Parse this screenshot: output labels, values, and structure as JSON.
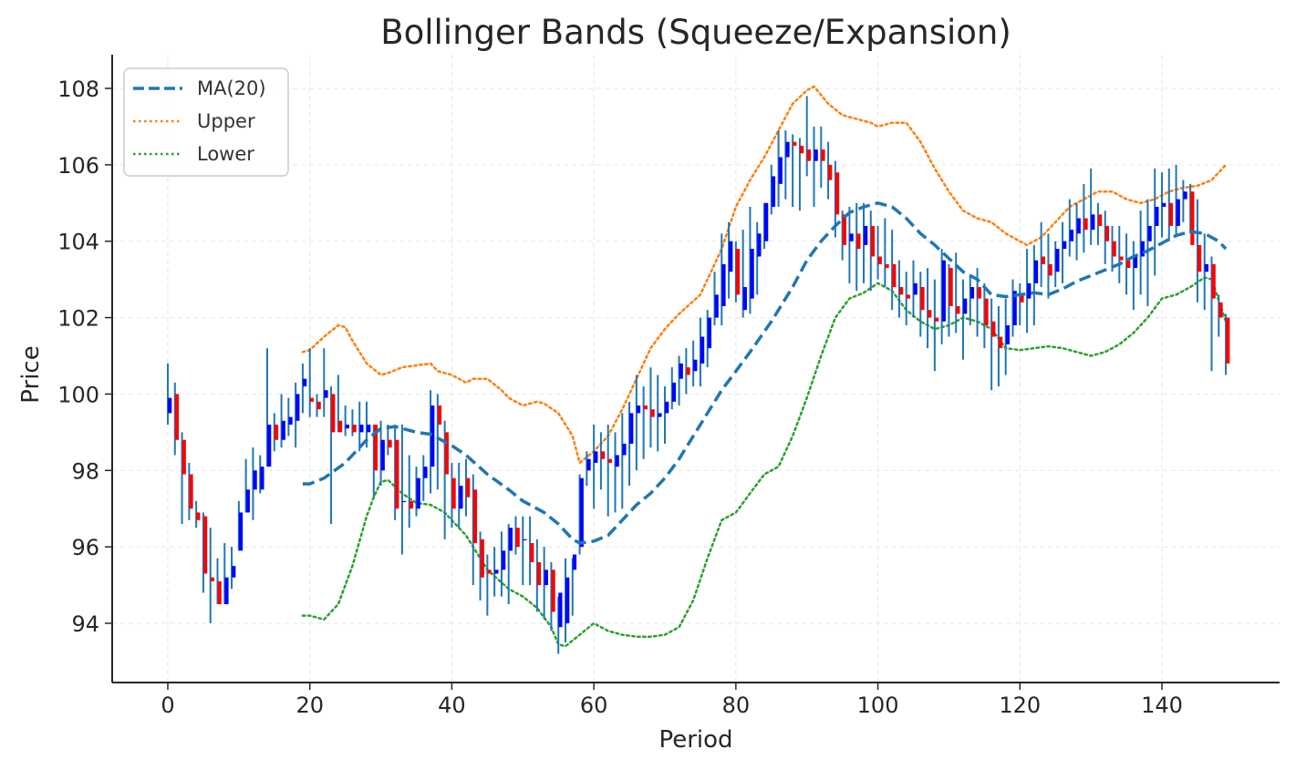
{
  "chart_data": {
    "type": "candlestick_with_bollinger_bands",
    "title": "Bollinger Bands (Squeeze/Expansion)",
    "xlabel": "Period",
    "ylabel": "Price",
    "xlim": [
      -8,
      157
    ],
    "ylim": [
      92.5,
      108.8
    ],
    "xticks": [
      0,
      20,
      40,
      60,
      80,
      100,
      120,
      140
    ],
    "yticks": [
      94,
      96,
      98,
      100,
      102,
      104,
      106,
      108
    ],
    "grid": true,
    "legend_position": "top-left",
    "colors": {
      "ma": "#1f77b4",
      "upper": "#ff7f0e",
      "lower": "#2ca02c",
      "wick": "#1f77b4",
      "up_body": "#0000ff",
      "down_body": "#ff0000",
      "grid": "#e6e6e6",
      "axis": "#262626"
    },
    "legend": [
      {
        "label": "MA(20)",
        "style": "dashed",
        "color": "#1f77b4"
      },
      {
        "label": "Upper",
        "style": "dotted",
        "color": "#ff7f0e"
      },
      {
        "label": "Lower",
        "style": "dotted",
        "color": "#2ca02c"
      }
    ],
    "ohlc_key": {
      "0": [
        99.5,
        100.8,
        99.2,
        99.9
      ],
      "1": [
        100.0,
        100.3,
        98.4,
        98.8
      ],
      "2": [
        98.8,
        99.0,
        96.6,
        97.9
      ],
      "3": [
        97.9,
        98.2,
        96.7,
        97.0
      ],
      "4": [
        96.9,
        97.2,
        96.5,
        96.7
      ],
      "5": [
        96.8,
        96.9,
        94.8,
        95.3
      ],
      "6": [
        95.2,
        96.5,
        94.0,
        95.1
      ],
      "7": [
        95.1,
        95.7,
        94.5,
        94.5
      ],
      "8": [
        94.5,
        96.1,
        94.5,
        95.2
      ],
      "9": [
        95.2,
        96.0,
        94.9,
        95.5
      ],
      "10": [
        95.9,
        97.2,
        95.9,
        96.9
      ],
      "11": [
        96.9,
        98.3,
        96.9,
        97.5
      ],
      "12": [
        97.5,
        98.6,
        96.7,
        98.0
      ],
      "13": [
        97.5,
        98.4,
        97.4,
        98.1
      ],
      "14": [
        98.1,
        101.2,
        98.1,
        99.2
      ],
      "15": [
        99.2,
        99.5,
        98.5,
        98.8
      ],
      "16": [
        98.8,
        100.0,
        98.6,
        99.3
      ],
      "17": [
        99.2,
        99.9,
        98.9,
        99.4
      ],
      "18": [
        99.3,
        100.3,
        98.6,
        100.0
      ],
      "19": [
        100.2,
        100.8,
        99.5,
        100.4
      ],
      "20": [
        99.9,
        101.2,
        99.4,
        99.8
      ],
      "21": [
        99.8,
        100.0,
        99.4,
        99.6
      ],
      "22": [
        99.9,
        101.2,
        99.4,
        100.1
      ],
      "23": [
        100.0,
        100.2,
        96.6,
        99.0
      ],
      "24": [
        99.3,
        100.5,
        99.0,
        99.0
      ],
      "25": [
        99.1,
        99.7,
        98.9,
        99.2
      ],
      "26": [
        99.2,
        99.6,
        98.9,
        99.0
      ],
      "27": [
        99.0,
        99.8,
        98.5,
        99.2
      ],
      "28": [
        99.0,
        99.8,
        98.6,
        99.2
      ],
      "29": [
        99.2,
        99.2,
        97.3,
        98.0
      ],
      "30": [
        98.0,
        99.3,
        97.6,
        98.8
      ],
      "31": [
        98.8,
        99.2,
        98.4,
        98.6
      ],
      "32": [
        98.8,
        99.2,
        96.7,
        97.0
      ],
      "33": [
        97.2,
        99.2,
        95.8,
        97.2
      ],
      "34": [
        97.2,
        98.4,
        96.5,
        97.0
      ],
      "35": [
        97.0,
        98.1,
        96.8,
        97.8
      ],
      "36": [
        97.8,
        98.4,
        97.2,
        98.1
      ],
      "37": [
        98.1,
        100.1,
        97.4,
        99.7
      ],
      "38": [
        99.7,
        100.0,
        97.5,
        99.2
      ],
      "39": [
        99.0,
        99.3,
        96.2,
        97.9
      ],
      "40": [
        97.8,
        98.2,
        96.5,
        97.0
      ],
      "41": [
        97.0,
        98.2,
        96.5,
        97.6
      ],
      "42": [
        97.8,
        98.3,
        96.8,
        97.3
      ],
      "43": [
        97.5,
        97.9,
        95.0,
        96.1
      ],
      "44": [
        96.2,
        96.4,
        94.6,
        95.2
      ],
      "45": [
        95.4,
        95.8,
        94.2,
        95.3
      ],
      "46": [
        95.3,
        96.0,
        94.7,
        95.4
      ],
      "47": [
        95.4,
        96.4,
        94.7,
        95.9
      ],
      "48": [
        95.9,
        96.6,
        94.5,
        96.5
      ],
      "49": [
        96.5,
        96.8,
        95.8,
        96.0
      ],
      "50": [
        96.2,
        96.8,
        95.0,
        96.2
      ],
      "51": [
        96.1,
        96.8,
        95.0,
        95.6
      ],
      "52": [
        95.6,
        96.2,
        94.3,
        95.0
      ],
      "53": [
        95.0,
        96.0,
        94.1,
        95.4
      ],
      "54": [
        95.4,
        95.6,
        93.8,
        94.3
      ],
      "55": [
        93.9,
        94.7,
        93.2,
        94.8
      ],
      "56": [
        94.0,
        95.7,
        93.5,
        95.2
      ],
      "57": [
        95.4,
        95.7,
        94.2,
        95.8
      ],
      "58": [
        96.0,
        97.9,
        95.8,
        97.8
      ],
      "59": [
        98.0,
        98.5,
        97.6,
        98.3
      ],
      "60": [
        98.2,
        99.2,
        97.0,
        98.5
      ],
      "61": [
        98.5,
        99.0,
        97.5,
        98.3
      ],
      "62": [
        98.3,
        99.2,
        96.8,
        98.2
      ],
      "63": [
        98.1,
        99.0,
        96.9,
        98.4
      ],
      "64": [
        98.4,
        99.5,
        97.0,
        98.7
      ],
      "65": [
        98.7,
        99.8,
        97.6,
        99.5
      ],
      "66": [
        99.5,
        100.5,
        98.0,
        99.7
      ],
      "67": [
        99.7,
        100.2,
        98.3,
        99.6
      ],
      "68": [
        99.6,
        100.7,
        98.6,
        99.4
      ],
      "69": [
        99.4,
        100.5,
        98.5,
        99.5
      ],
      "70": [
        99.5,
        100.2,
        98.7,
        99.8
      ],
      "71": [
        99.8,
        100.7,
        99.6,
        100.3
      ],
      "72": [
        100.4,
        101.0,
        99.7,
        100.8
      ],
      "73": [
        100.7,
        101.2,
        100.0,
        100.5
      ],
      "74": [
        100.6,
        101.4,
        100.2,
        100.9
      ],
      "75": [
        100.8,
        102.0,
        100.2,
        101.5
      ],
      "76": [
        101.2,
        102.2,
        100.7,
        102.0
      ],
      "77": [
        102.0,
        103.2,
        101.8,
        102.6
      ],
      "78": [
        102.3,
        104.2,
        101.8,
        103.4
      ],
      "79": [
        103.2,
        104.5,
        102.5,
        104.0
      ],
      "80": [
        103.8,
        104.0,
        102.4,
        102.6
      ],
      "81": [
        102.2,
        104.3,
        102.0,
        102.8
      ],
      "82": [
        102.5,
        104.9,
        102.1,
        103.8
      ],
      "83": [
        103.6,
        104.5,
        102.6,
        104.2
      ],
      "84": [
        104.0,
        105.0,
        103.8,
        105.0
      ],
      "85": [
        104.9,
        106.0,
        104.7,
        105.7
      ],
      "86": [
        105.5,
        106.9,
        104.9,
        106.2
      ],
      "87": [
        106.2,
        106.9,
        105.1,
        106.6
      ],
      "88": [
        106.6,
        106.8,
        104.9,
        106.5
      ],
      "89": [
        106.5,
        106.7,
        104.8,
        106.3
      ],
      "90": [
        106.4,
        107.8,
        105.7,
        106.1
      ],
      "91": [
        106.1,
        107.0,
        104.9,
        106.4
      ],
      "92": [
        106.4,
        107.0,
        105.4,
        106.1
      ],
      "93": [
        106.0,
        106.6,
        105.1,
        105.6
      ],
      "94": [
        105.8,
        106.1,
        104.1,
        104.7
      ],
      "95": [
        104.7,
        104.8,
        103.5,
        103.9
      ],
      "96": [
        104.0,
        104.9,
        102.9,
        104.2
      ],
      "97": [
        104.2,
        105.0,
        102.7,
        103.8
      ],
      "98": [
        103.9,
        105.0,
        102.9,
        104.4
      ],
      "99": [
        104.4,
        104.8,
        102.7,
        103.6
      ],
      "100": [
        103.6,
        104.4,
        103.0,
        103.4
      ],
      "101": [
        103.4,
        104.6,
        102.8,
        103.3
      ],
      "102": [
        103.4,
        104.3,
        102.2,
        102.8
      ],
      "103": [
        102.8,
        103.5,
        102.0,
        102.6
      ],
      "104": [
        102.6,
        103.2,
        101.8,
        102.5
      ],
      "105": [
        102.6,
        103.5,
        102.0,
        102.9
      ],
      "106": [
        102.8,
        103.2,
        101.5,
        102.2
      ],
      "107": [
        102.2,
        103.3,
        101.2,
        102.0
      ],
      "108": [
        102.0,
        103.0,
        100.6,
        101.9
      ],
      "109": [
        101.9,
        103.8,
        101.3,
        103.5
      ],
      "110": [
        103.3,
        103.4,
        101.5,
        102.3
      ],
      "111": [
        102.3,
        103.7,
        101.6,
        102.1
      ],
      "112": [
        102.1,
        103.0,
        100.9,
        102.5
      ],
      "113": [
        102.5,
        103.1,
        101.8,
        102.8
      ],
      "114": [
        102.8,
        103.3,
        101.5,
        102.5
      ],
      "115": [
        102.5,
        102.9,
        101.2,
        101.8
      ],
      "116": [
        101.9,
        102.5,
        100.1,
        101.5
      ],
      "117": [
        101.5,
        102.3,
        100.2,
        101.2
      ],
      "118": [
        101.3,
        102.5,
        100.5,
        101.8
      ],
      "119": [
        101.8,
        103.0,
        101.5,
        102.7
      ],
      "120": [
        102.6,
        102.9,
        101.8,
        102.4
      ],
      "121": [
        102.5,
        103.8,
        101.6,
        102.9
      ],
      "122": [
        102.9,
        103.9,
        101.8,
        103.5
      ],
      "123": [
        103.6,
        104.5,
        102.8,
        103.4
      ],
      "124": [
        103.4,
        104.2,
        102.5,
        103.1
      ],
      "125": [
        103.2,
        104.0,
        102.8,
        103.8
      ],
      "126": [
        103.8,
        104.5,
        102.9,
        104.0
      ],
      "127": [
        104.0,
        105.1,
        103.6,
        104.3
      ],
      "128": [
        104.2,
        105.0,
        103.5,
        104.6
      ],
      "129": [
        104.6,
        105.5,
        103.7,
        104.3
      ],
      "130": [
        104.3,
        105.9,
        103.9,
        104.7
      ],
      "131": [
        104.7,
        105.0,
        103.9,
        104.4
      ],
      "132": [
        104.4,
        104.8,
        103.4,
        104.0
      ],
      "133": [
        104.0,
        104.4,
        103.2,
        103.6
      ],
      "134": [
        103.6,
        104.4,
        102.9,
        103.5
      ],
      "135": [
        103.5,
        104.2,
        102.6,
        103.3
      ],
      "136": [
        103.3,
        104.0,
        102.2,
        103.6
      ],
      "137": [
        103.6,
        104.8,
        102.6,
        104.0
      ],
      "138": [
        104.0,
        105.1,
        102.3,
        104.4
      ],
      "139": [
        104.4,
        105.9,
        103.1,
        104.9
      ],
      "140": [
        104.9,
        105.8,
        104.1,
        105.0
      ],
      "141": [
        105.0,
        105.9,
        104.0,
        104.4
      ],
      "142": [
        104.4,
        106.0,
        104.1,
        105.1
      ],
      "143": [
        105.1,
        105.6,
        104.5,
        105.3
      ],
      "144": [
        105.3,
        105.5,
        104.2,
        103.9
      ],
      "145": [
        103.9,
        105.1,
        102.4,
        103.2
      ],
      "146": [
        103.2,
        104.2,
        102.2,
        103.4
      ],
      "147": [
        103.4,
        103.6,
        100.6,
        102.5
      ],
      "148": [
        102.4,
        102.6,
        101.5,
        102.0
      ],
      "149": [
        102.0,
        102.1,
        100.5,
        100.8
      ]
    },
    "ma_x": [
      19,
      20,
      22,
      25,
      28,
      30,
      32,
      35,
      37,
      40,
      42,
      45,
      48,
      50,
      53,
      55,
      57,
      58,
      60,
      62,
      64,
      66,
      68,
      70,
      72,
      75,
      78,
      80,
      82,
      85,
      88,
      90,
      92,
      94,
      96,
      98,
      100,
      102,
      104,
      106,
      108,
      110,
      112,
      114,
      116,
      118,
      120,
      122,
      124,
      126,
      128,
      130,
      132,
      134,
      136,
      138,
      140,
      142,
      144,
      146,
      148,
      149
    ],
    "ma_values": [
      97.65,
      97.65,
      97.8,
      98.2,
      98.8,
      99.1,
      99.15,
      99.0,
      98.95,
      98.65,
      98.4,
      97.9,
      97.5,
      97.2,
      96.9,
      96.6,
      96.2,
      96.1,
      96.15,
      96.3,
      96.7,
      97.1,
      97.4,
      97.8,
      98.3,
      99.2,
      100.1,
      100.6,
      101.1,
      101.9,
      102.8,
      103.5,
      104.0,
      104.4,
      104.75,
      104.9,
      105.0,
      104.9,
      104.6,
      104.2,
      103.9,
      103.55,
      103.2,
      103.0,
      102.6,
      102.55,
      102.6,
      102.65,
      102.6,
      102.75,
      102.95,
      103.1,
      103.25,
      103.4,
      103.6,
      103.75,
      103.95,
      104.15,
      104.25,
      104.2,
      104.0,
      103.8
    ],
    "upper_x": [
      19,
      20,
      22,
      24,
      25,
      26,
      28,
      30,
      31,
      33,
      35,
      37,
      38,
      40,
      42,
      43,
      45,
      47,
      48,
      50,
      52,
      53,
      55,
      57,
      58,
      60,
      62,
      64,
      66,
      68,
      70,
      72,
      75,
      78,
      80,
      82,
      84,
      86,
      88,
      90,
      91,
      93,
      95,
      97,
      99,
      100,
      102,
      104,
      106,
      108,
      110,
      112,
      114,
      116,
      118,
      120,
      121,
      123,
      125,
      127,
      129,
      131,
      133,
      135,
      137,
      139,
      141,
      143,
      145,
      147,
      149
    ],
    "upper_values": [
      101.1,
      101.15,
      101.5,
      101.8,
      101.75,
      101.4,
      100.8,
      100.5,
      100.55,
      100.7,
      100.75,
      100.8,
      100.6,
      100.5,
      100.3,
      100.4,
      100.4,
      100.1,
      99.9,
      99.7,
      99.8,
      99.75,
      99.5,
      98.9,
      98.2,
      98.5,
      98.9,
      99.6,
      100.4,
      101.2,
      101.7,
      102.1,
      102.6,
      103.8,
      104.9,
      105.6,
      106.2,
      106.9,
      107.6,
      107.95,
      108.05,
      107.6,
      107.3,
      107.2,
      107.1,
      107.0,
      107.1,
      107.1,
      106.6,
      105.9,
      105.3,
      104.8,
      104.6,
      104.5,
      104.2,
      104.0,
      103.9,
      104.1,
      104.5,
      104.9,
      105.1,
      105.3,
      105.3,
      105.1,
      105.0,
      105.1,
      105.3,
      105.4,
      105.45,
      105.6,
      106.0
    ],
    "lower_x": [
      19,
      20,
      22,
      24,
      26,
      28,
      29,
      30,
      31,
      33,
      35,
      37,
      39,
      42,
      45,
      48,
      50,
      52,
      54,
      55,
      56,
      58,
      60,
      62,
      64,
      66,
      68,
      70,
      72,
      74,
      76,
      78,
      80,
      82,
      84,
      86,
      88,
      90,
      92,
      94,
      96,
      98,
      100,
      102,
      104,
      106,
      108,
      110,
      112,
      114,
      116,
      118,
      120,
      122,
      124,
      126,
      128,
      130,
      132,
      134,
      136,
      138,
      140,
      142,
      144,
      146,
      147,
      149
    ],
    "lower_values": [
      94.2,
      94.2,
      94.1,
      94.5,
      95.5,
      96.8,
      97.3,
      97.7,
      97.75,
      97.4,
      97.15,
      97.1,
      96.9,
      96.3,
      95.4,
      94.9,
      94.7,
      94.4,
      93.9,
      93.45,
      93.4,
      93.7,
      94.0,
      93.8,
      93.7,
      93.65,
      93.65,
      93.7,
      93.9,
      94.6,
      95.7,
      96.7,
      96.9,
      97.4,
      97.9,
      98.1,
      98.9,
      99.9,
      101.0,
      102.0,
      102.5,
      102.65,
      102.9,
      102.7,
      102.2,
      101.9,
      101.7,
      101.8,
      102.0,
      101.9,
      101.7,
      101.2,
      101.15,
      101.2,
      101.25,
      101.2,
      101.1,
      101.0,
      101.1,
      101.3,
      101.6,
      102.0,
      102.5,
      102.6,
      102.8,
      103.05,
      103.0,
      101.9
    ]
  }
}
